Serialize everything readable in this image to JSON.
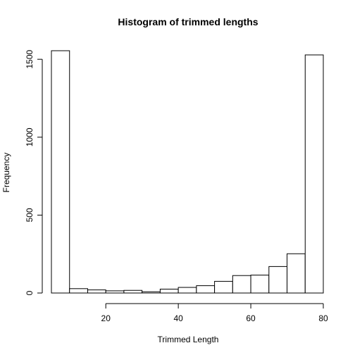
{
  "chart_data": {
    "type": "bar",
    "title": "Histogram of trimmed lengths",
    "xlabel": "Trimmed Length",
    "ylabel": "Frequency",
    "bin_edges": [
      5,
      10,
      15,
      20,
      25,
      30,
      35,
      40,
      45,
      50,
      55,
      60,
      65,
      70,
      75,
      80
    ],
    "values": [
      1555,
      28,
      20,
      14,
      17,
      8,
      25,
      36,
      47,
      75,
      112,
      115,
      170,
      252,
      1528
    ],
    "xlim": [
      5,
      80
    ],
    "ylim": [
      0,
      1555
    ],
    "x_ticks": [
      20,
      40,
      60,
      80
    ],
    "x_tick_labels": [
      "20",
      "40",
      "60",
      "80"
    ],
    "y_ticks": [
      0,
      500,
      1000,
      1500
    ],
    "y_tick_labels": [
      "0",
      "500",
      "1000",
      "1500"
    ],
    "grid": false,
    "legend": "none"
  }
}
